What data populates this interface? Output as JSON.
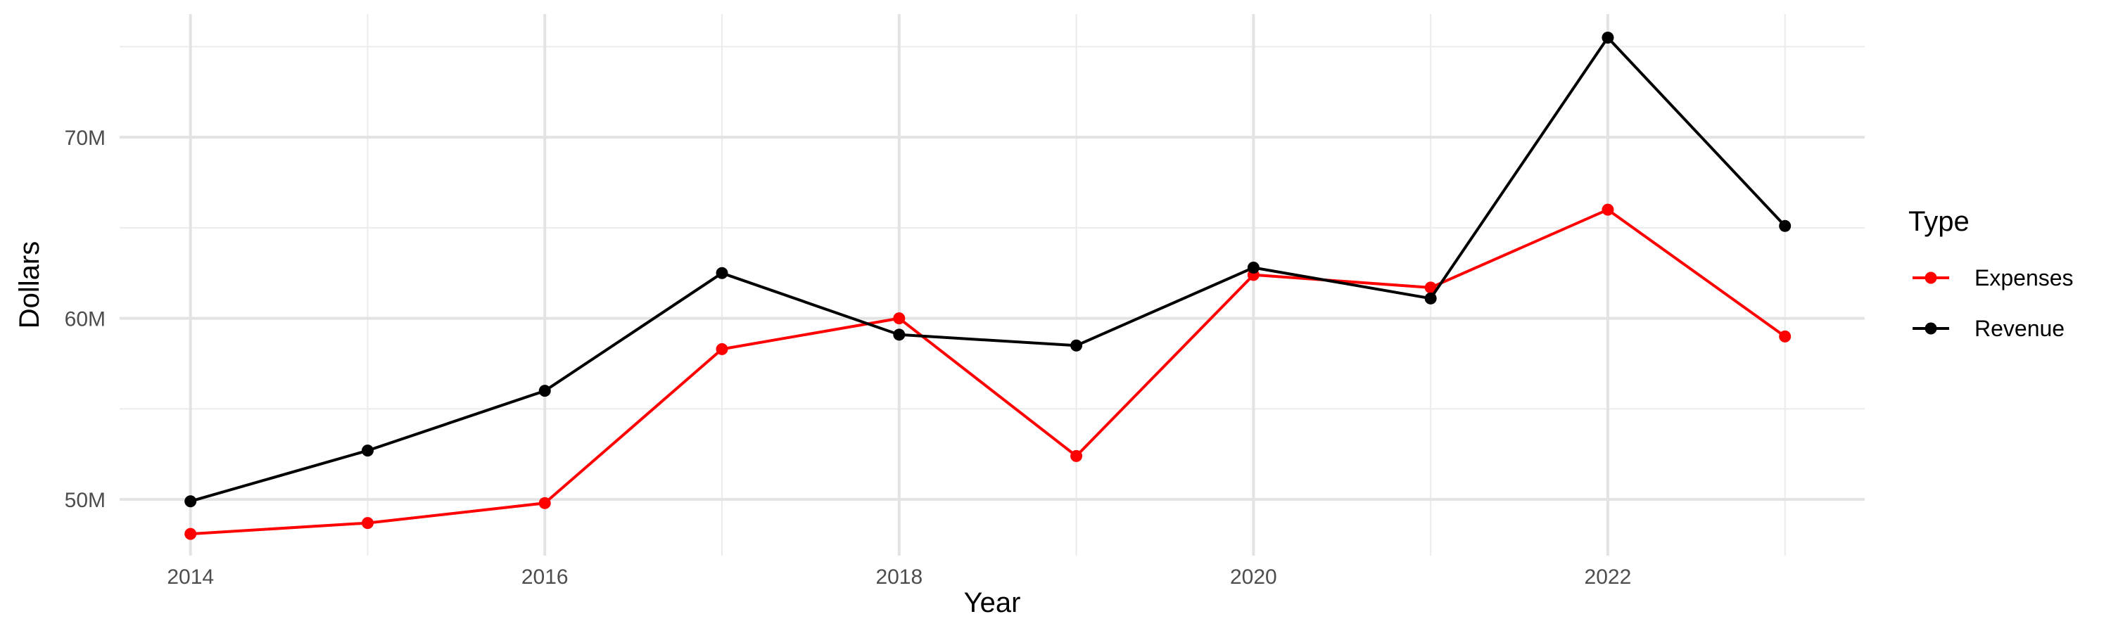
{
  "chart_data": {
    "type": "line",
    "title": "",
    "xlabel": "Year",
    "ylabel": "Dollars",
    "x": [
      2014,
      2015,
      2016,
      2017,
      2018,
      2019,
      2020,
      2021,
      2022,
      2023
    ],
    "xlim": [
      2013.6,
      2023.45
    ],
    "ylim": [
      46.9,
      76.8
    ],
    "x_ticks": [
      2014,
      2016,
      2018,
      2020,
      2022
    ],
    "x_tick_labels": [
      "2014",
      "2016",
      "2018",
      "2020",
      "2022"
    ],
    "y_ticks": [
      50,
      60,
      70
    ],
    "y_tick_labels": [
      "50M",
      "60M",
      "70M"
    ],
    "y_unit": "M",
    "grid": true,
    "legend": {
      "title": "Type",
      "placement": "right"
    },
    "series": [
      {
        "name": "Expenses",
        "color": "#ff0000",
        "values": [
          48.1,
          48.7,
          49.8,
          58.3,
          60.0,
          52.4,
          62.4,
          61.7,
          66.0,
          59.0
        ]
      },
      {
        "name": "Revenue",
        "color": "#000000",
        "values": [
          49.9,
          52.7,
          56.0,
          62.5,
          59.1,
          58.5,
          62.8,
          61.1,
          75.5,
          65.1
        ]
      }
    ]
  }
}
